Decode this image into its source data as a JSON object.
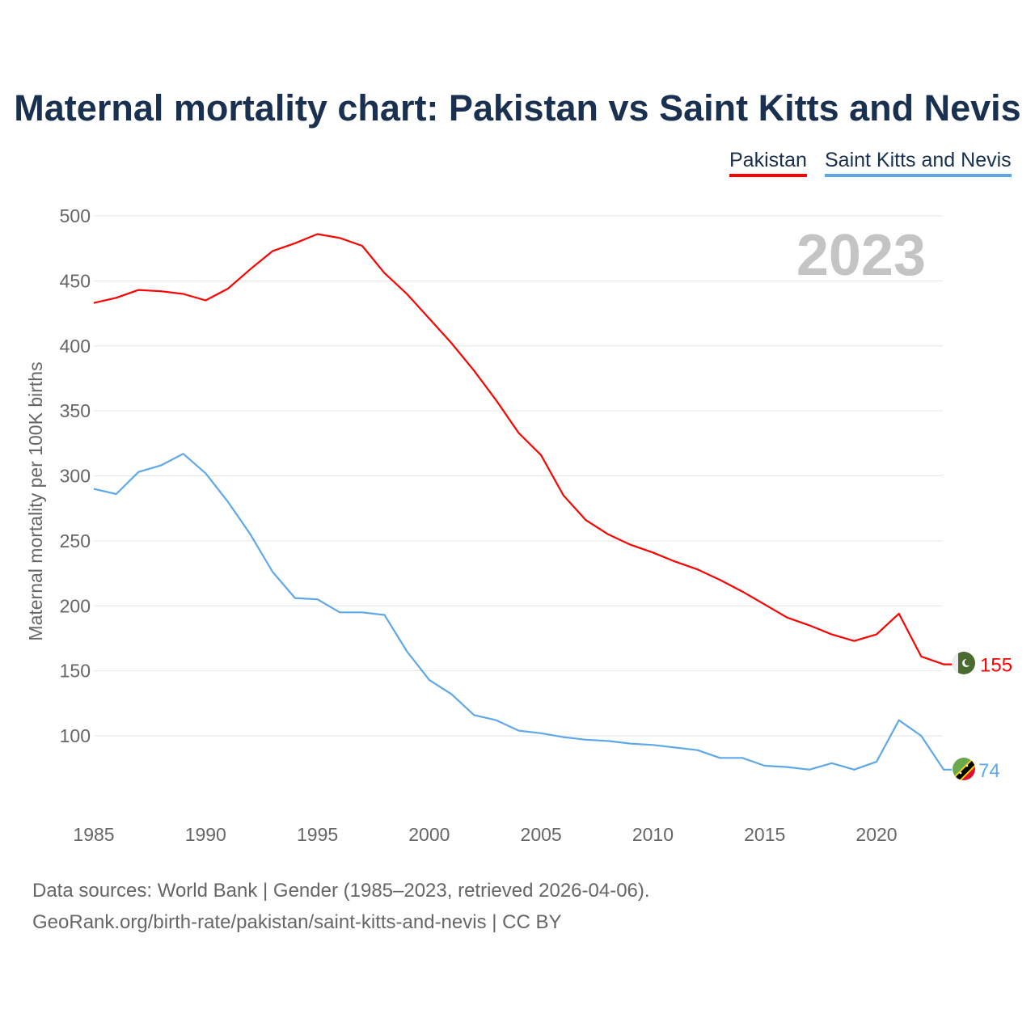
{
  "title": "Maternal mortality chart: Pakistan vs Saint Kitts and Nevis",
  "footer": {
    "line1": "Data sources: World Bank | Gender (1985–2023, retrieved 2026-04-06).",
    "line2": "GeoRank.org/birth-rate/pakistan/saint-kitts-and-nevis | CC BY"
  },
  "chart_data": {
    "type": "line",
    "title": "Maternal mortality chart: Pakistan vs Saint Kitts and Nevis",
    "ylabel": "Maternal mortality per 100K births",
    "xlabel": "",
    "year_watermark": "2023",
    "xlim": [
      1985,
      2023
    ],
    "ylim": [
      50,
      500
    ],
    "xticks": [
      1985,
      1990,
      1995,
      2000,
      2005,
      2010,
      2015,
      2020
    ],
    "yticks": [
      100,
      150,
      200,
      250,
      300,
      350,
      400,
      450,
      500
    ],
    "grid": true,
    "legend_position": "top-right",
    "x": [
      1985,
      1986,
      1987,
      1988,
      1989,
      1990,
      1991,
      1992,
      1993,
      1994,
      1995,
      1996,
      1997,
      1998,
      1999,
      2000,
      2001,
      2002,
      2003,
      2004,
      2005,
      2006,
      2007,
      2008,
      2009,
      2010,
      2011,
      2012,
      2013,
      2014,
      2015,
      2016,
      2017,
      2018,
      2019,
      2020,
      2021,
      2022,
      2023
    ],
    "series": [
      {
        "name": "Pakistan",
        "color": "#ff0000",
        "end_label": "155",
        "values": [
          433,
          437,
          443,
          442,
          440,
          435,
          444,
          459,
          473,
          479,
          486,
          483,
          477,
          456,
          440,
          421,
          402,
          381,
          358,
          333,
          316,
          285,
          266,
          255,
          247,
          241,
          234,
          228,
          220,
          211,
          201,
          191,
          185,
          178,
          173,
          178,
          194,
          161,
          155
        ]
      },
      {
        "name": "Saint Kitts and Nevis",
        "color": "#5fa8e8",
        "end_label": "74",
        "values": [
          290,
          286,
          303,
          308,
          317,
          302,
          280,
          255,
          226,
          206,
          205,
          195,
          195,
          193,
          165,
          143,
          132,
          116,
          112,
          104,
          102,
          99,
          97,
          96,
          94,
          93,
          91,
          89,
          83,
          83,
          77,
          76,
          74,
          79,
          74,
          80,
          112,
          100,
          74
        ]
      }
    ]
  }
}
